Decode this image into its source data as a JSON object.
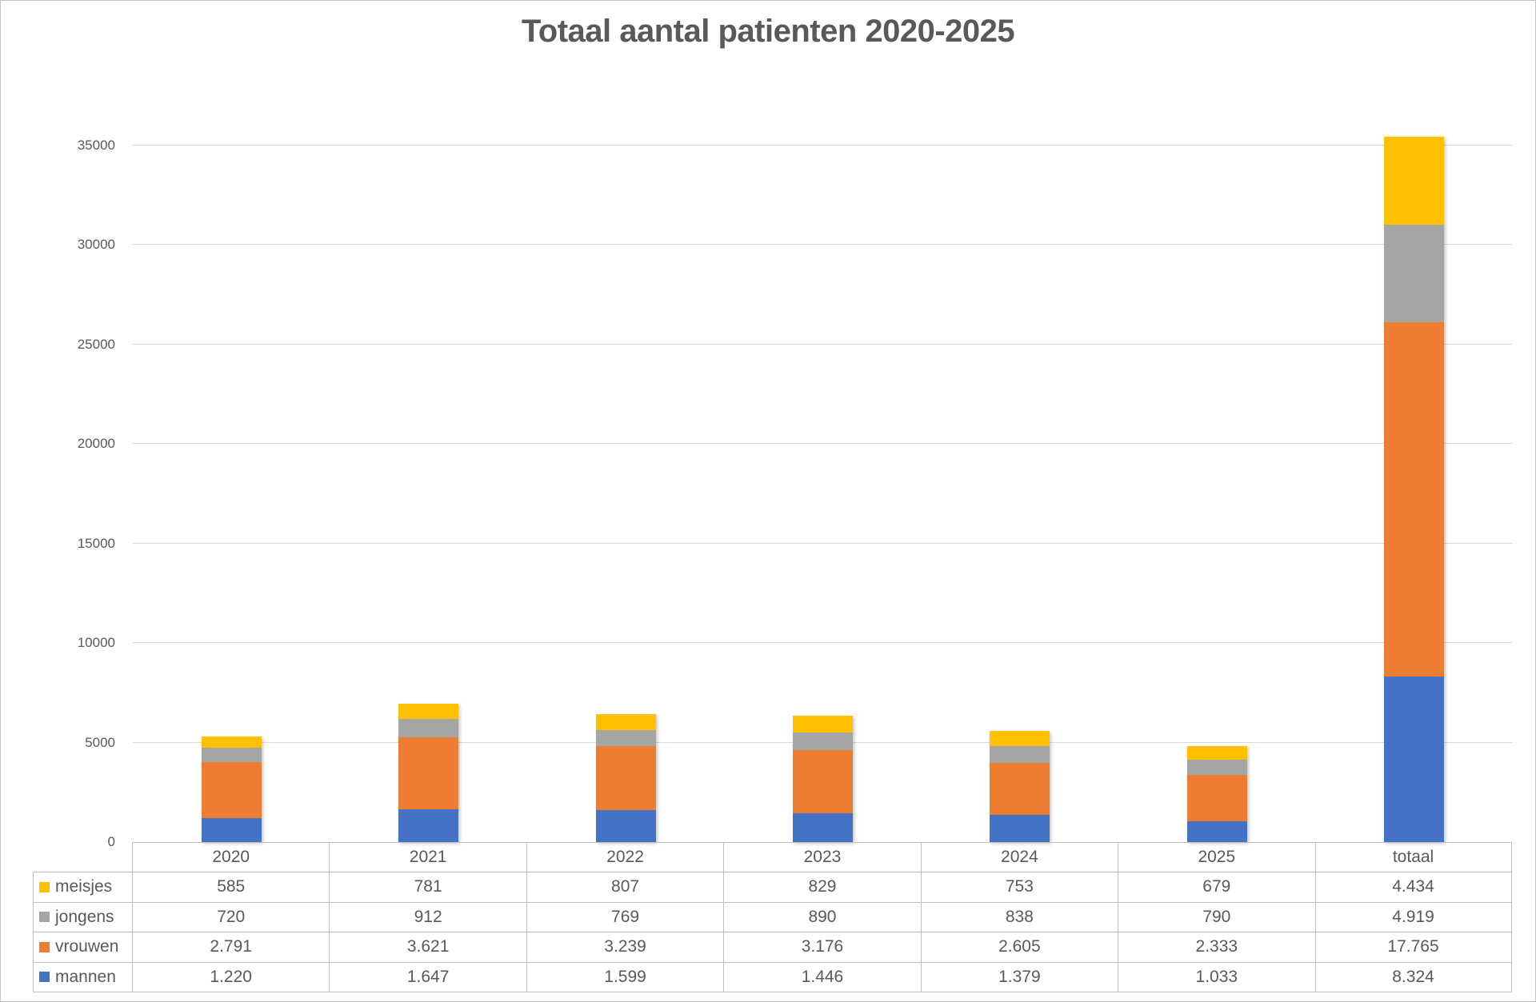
{
  "title": "Totaal aantal patienten 2020-2025",
  "colors": {
    "mannen": "#4472C4",
    "vrouwen": "#ED7D31",
    "jongens": "#A5A5A5",
    "meisjes": "#FFC000",
    "gridline": "#d9d9d9",
    "table_border": "#bfbfbf",
    "text": "#595959"
  },
  "chart_data": {
    "type": "bar",
    "stacked": true,
    "title": "Totaal aantal patienten 2020-2025",
    "categories": [
      "2020",
      "2021",
      "2022",
      "2023",
      "2024",
      "2025",
      "totaal"
    ],
    "series": [
      {
        "name": "mannen",
        "color": "#4472C4",
        "values": [
          1220,
          1647,
          1599,
          1446,
          1379,
          1033,
          8324
        ]
      },
      {
        "name": "vrouwen",
        "color": "#ED7D31",
        "values": [
          2791,
          3621,
          3239,
          3176,
          2605,
          2333,
          17765
        ]
      },
      {
        "name": "jongens",
        "color": "#A5A5A5",
        "values": [
          720,
          912,
          769,
          890,
          838,
          790,
          4919
        ]
      },
      {
        "name": "meisjes",
        "color": "#FFC000",
        "values": [
          585,
          781,
          807,
          829,
          753,
          679,
          4434
        ]
      }
    ],
    "xlabel": "",
    "ylabel": "",
    "ylim": [
      0,
      35000
    ],
    "ytick_step": 5000,
    "yticks": [
      "0",
      "5000",
      "10000",
      "15000",
      "20000",
      "25000",
      "30000",
      "35000"
    ],
    "grid": true,
    "legend_position": "data-table-row-headers"
  },
  "table": {
    "column_headers": [
      "2020",
      "2021",
      "2022",
      "2023",
      "2024",
      "2025",
      "totaal"
    ],
    "rows": [
      {
        "label": "meisjes",
        "key_color": "#FFC000",
        "values": [
          "585",
          "781",
          "807",
          "829",
          "753",
          "679",
          "4.434"
        ]
      },
      {
        "label": "jongens",
        "key_color": "#A5A5A5",
        "values": [
          "720",
          "912",
          "769",
          "890",
          "838",
          "790",
          "4.919"
        ]
      },
      {
        "label": "vrouwen",
        "key_color": "#ED7D31",
        "values": [
          "2.791",
          "3.621",
          "3.239",
          "3.176",
          "2.605",
          "2.333",
          "17.765"
        ]
      },
      {
        "label": "mannen",
        "key_color": "#4472C4",
        "values": [
          "1.220",
          "1.647",
          "1.599",
          "1.446",
          "1.379",
          "1.033",
          "8.324"
        ]
      }
    ]
  }
}
